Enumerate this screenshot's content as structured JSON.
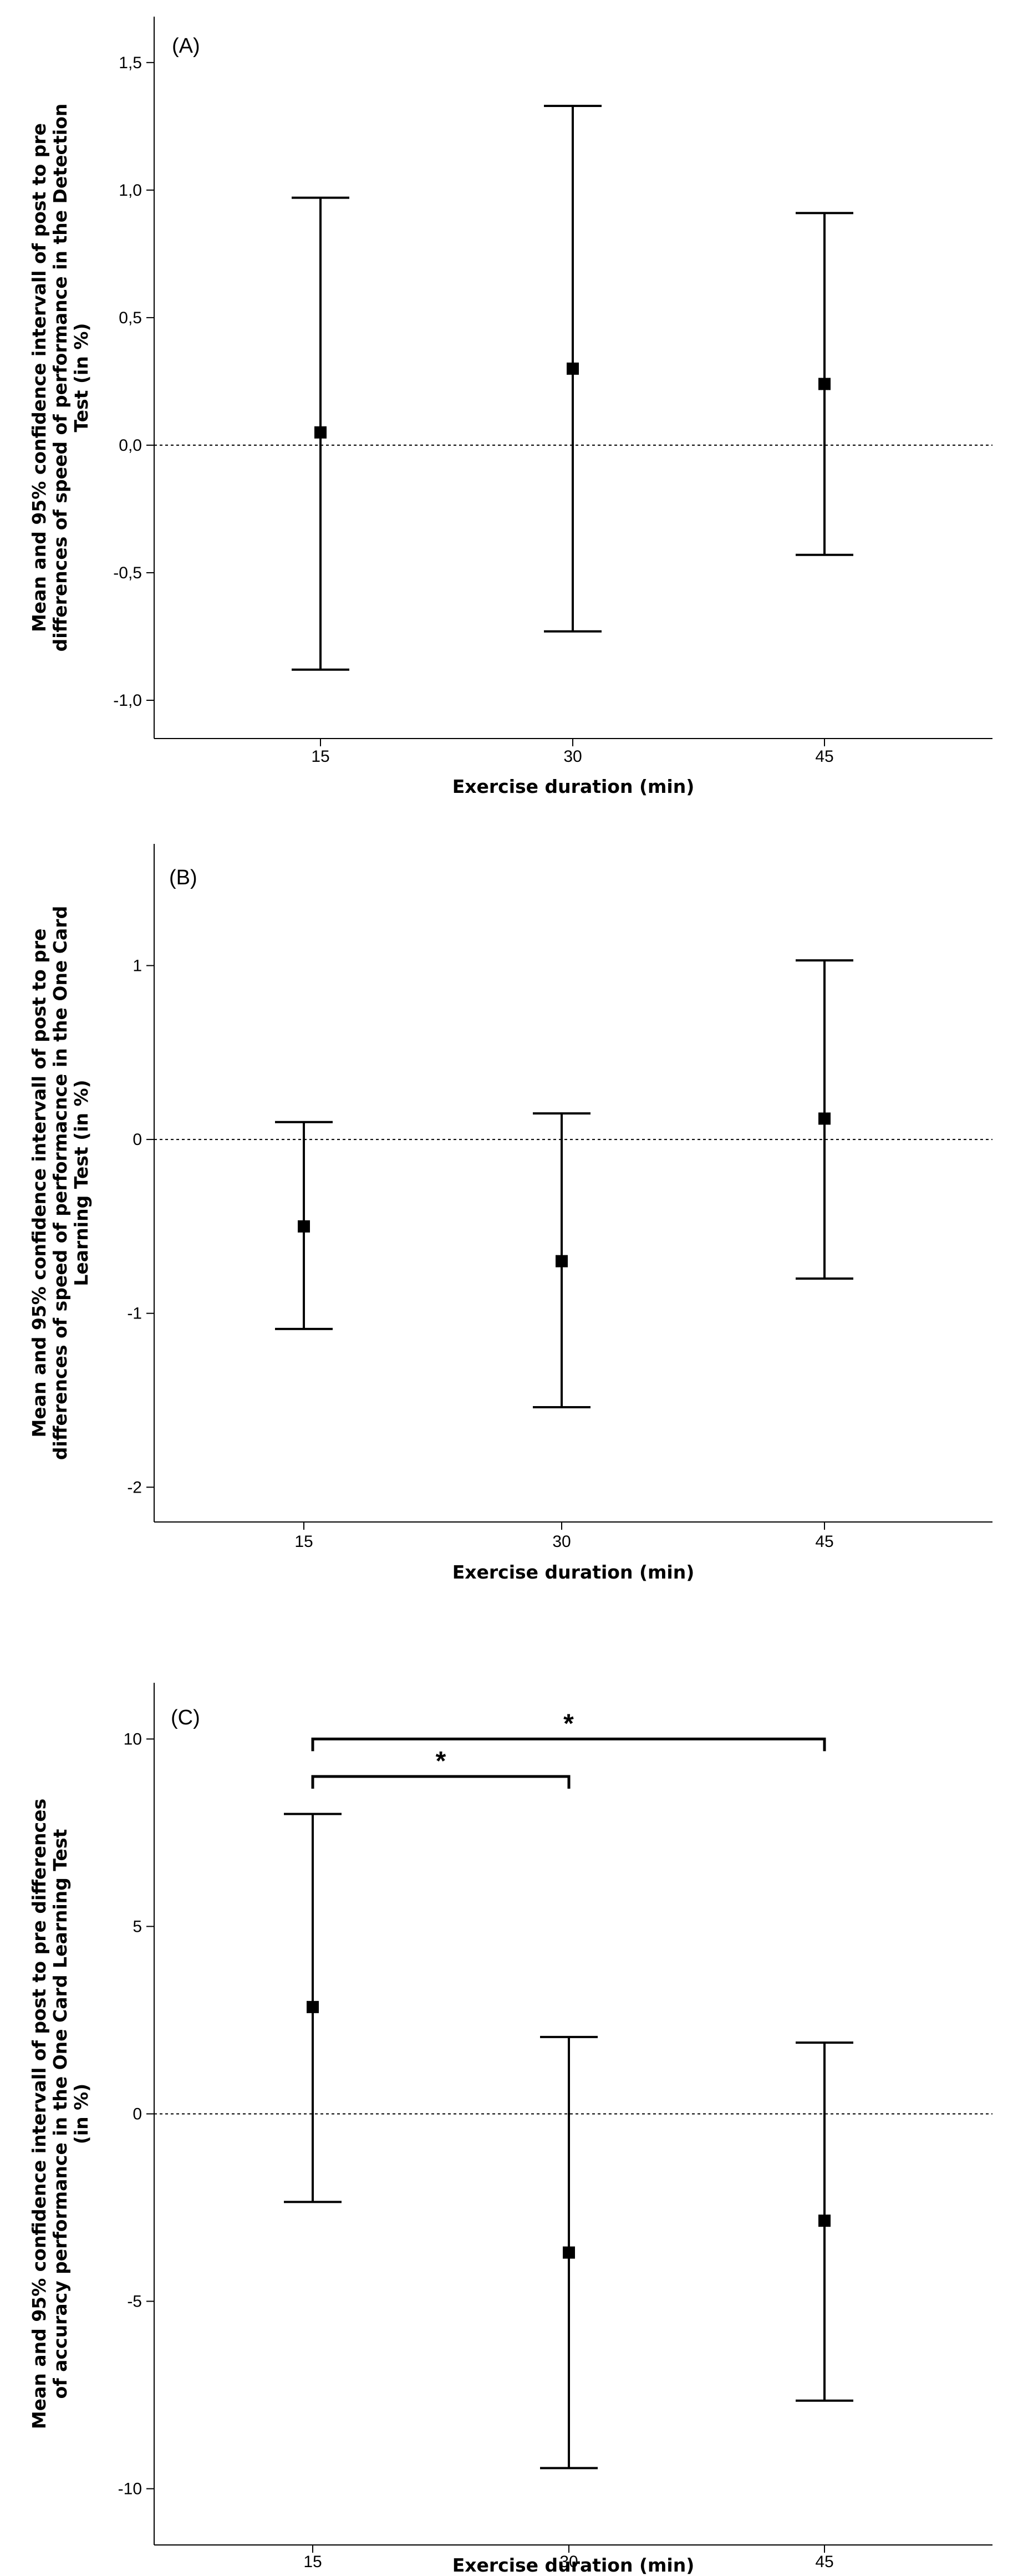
{
  "chart_data": [
    {
      "type": "errorbar",
      "panel_label": "(A)",
      "xlabel": "Exercise duration (min)",
      "ylabel_lines": [
        "Mean and 95% confidence intervall of post to pre",
        "differences of speed of performance in the Detection",
        "Test (in %)"
      ],
      "categories": [
        "15",
        "30",
        "45"
      ],
      "ylim": [
        -1.15,
        1.68
      ],
      "yticks": [
        -1.0,
        -0.5,
        0.0,
        0.5,
        1.0,
        1.5
      ],
      "ytick_labels": [
        "-1,0",
        "-0,5",
        "0,0",
        "0,5",
        "1,0",
        "1,5"
      ],
      "means": [
        0.05,
        0.3,
        0.24
      ],
      "lower": [
        -0.88,
        -0.73,
        -0.43
      ],
      "upper": [
        0.97,
        1.33,
        0.91
      ],
      "reference_line": 0,
      "significance": []
    },
    {
      "type": "errorbar",
      "panel_label": "(B)",
      "xlabel": "Exercise duration (min)",
      "ylabel_lines": [
        "Mean and 95% confidence intervall of post to pre",
        "differences of speed of performacnce in the One Card",
        "Learning Test (in %)"
      ],
      "categories": [
        "15",
        "30",
        "45"
      ],
      "ylim": [
        -2.2,
        1.7
      ],
      "yticks": [
        -2,
        -1,
        0,
        1
      ],
      "ytick_labels": [
        "-2",
        "-1",
        "0",
        "1"
      ],
      "means": [
        -0.5,
        -0.7,
        0.12
      ],
      "lower": [
        -1.09,
        -1.54,
        -0.8
      ],
      "upper": [
        0.1,
        0.15,
        1.03
      ],
      "reference_line": 0,
      "significance": []
    },
    {
      "type": "errorbar",
      "panel_label": "(C)",
      "xlabel": "Exercise duration (min)",
      "ylabel_lines": [
        "Mean and 95% confidence intervall of post to pre differences",
        "of accuracy performance in the One Card Learning Test",
        "(in %)"
      ],
      "categories": [
        "15",
        "30",
        "45"
      ],
      "ylim": [
        -11.5,
        11.5
      ],
      "yticks": [
        -10,
        -5,
        0,
        5,
        10
      ],
      "ytick_labels": [
        "-10",
        "-5",
        "0",
        "5",
        "10"
      ],
      "means": [
        2.85,
        -3.7,
        -2.85
      ],
      "lower": [
        -2.35,
        -9.45,
        -7.65
      ],
      "upper": [
        8.0,
        2.05,
        1.9
      ],
      "reference_line": 0,
      "significance": [
        {
          "from": "15",
          "to": "30",
          "level": 9.0,
          "label": "*"
        },
        {
          "from": "15",
          "to": "45",
          "level": 10.0,
          "label": "*"
        }
      ]
    }
  ]
}
